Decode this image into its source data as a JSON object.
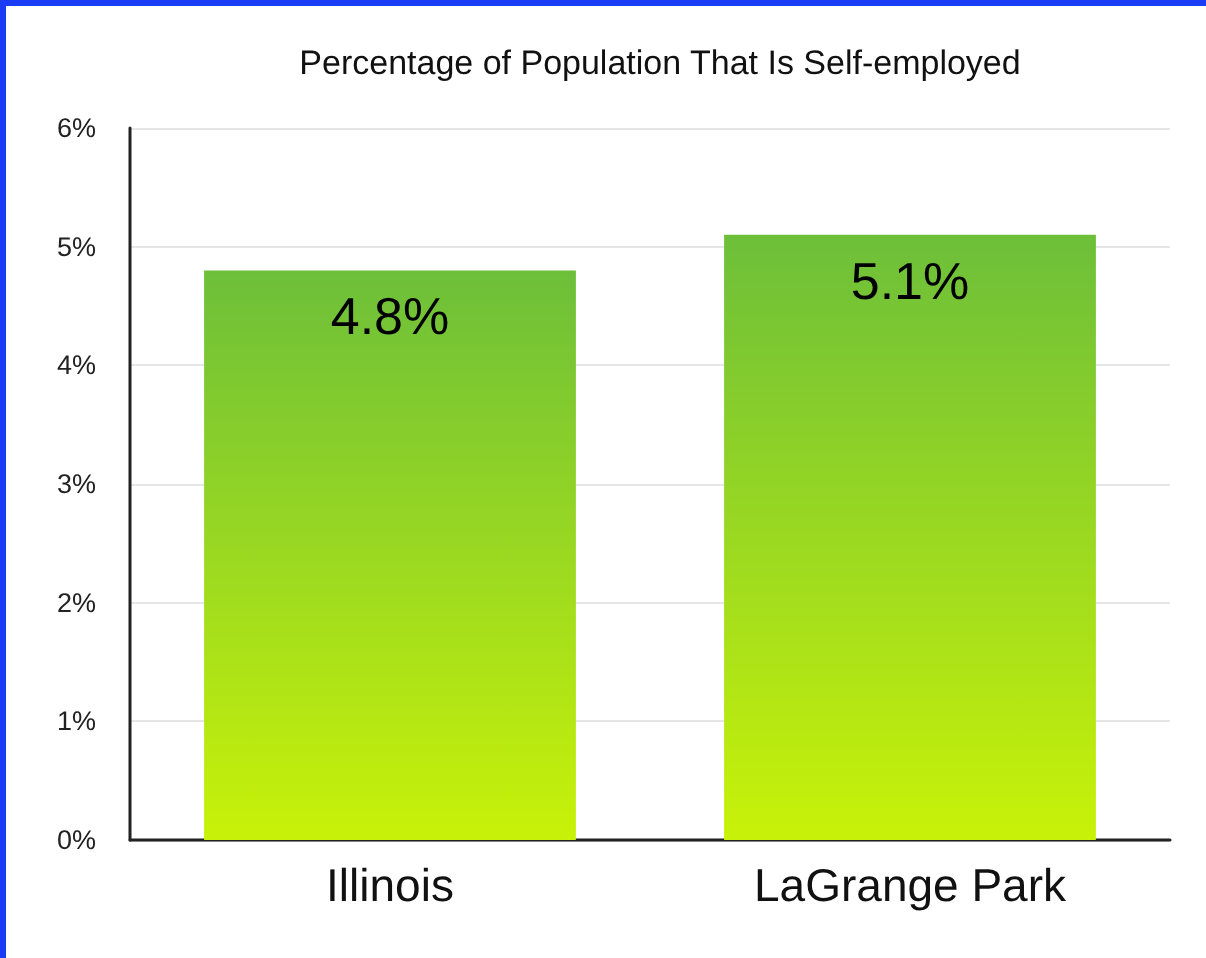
{
  "chart_data": {
    "type": "bar",
    "title": "Percentage of Population That Is Self-employed",
    "categories": [
      "Illinois",
      "LaGrange Park"
    ],
    "values": [
      4.8,
      5.1
    ],
    "color": "#6dbf3a",
    "value_labels": [
      "4.8%",
      "5.1%"
    ],
    "ylim": [
      0,
      6
    ],
    "yticks": [
      {
        "value": 0,
        "label": "0%"
      },
      {
        "value": 1,
        "label": "1%"
      },
      {
        "value": 2,
        "label": "2%"
      },
      {
        "value": 3,
        "label": "3%"
      },
      {
        "value": 4,
        "label": "4%"
      },
      {
        "value": 5,
        "label": "5%"
      },
      {
        "value": 6,
        "label": "6%"
      }
    ],
    "grid": "y"
  }
}
